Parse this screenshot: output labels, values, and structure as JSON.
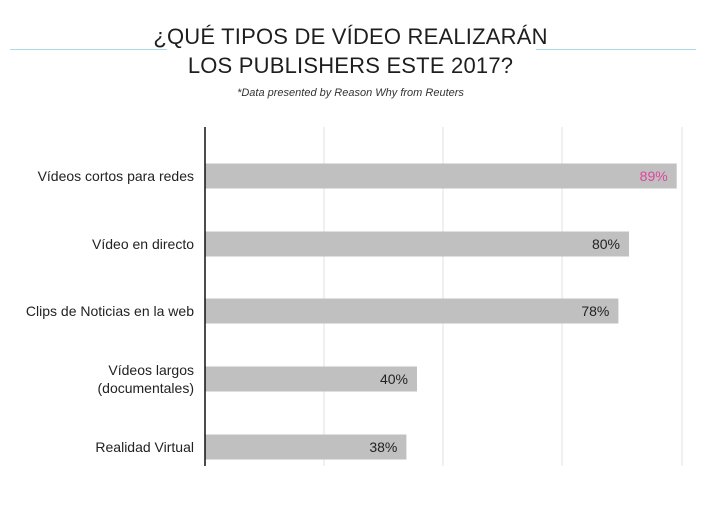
{
  "title": {
    "line1": "¿QUÉ TIPOS DE VÍDEO REALIZARÁN",
    "line2": "LOS PUBLISHERS ESTE 2017?"
  },
  "subtitle": "*Data presented by Reason Why from Reuters",
  "colors": {
    "bar": "#c0c0c0",
    "highlight_label": "#e0449a",
    "rule": "#a9dbe6",
    "grid": "#e2e2e2",
    "axis": "#111111"
  },
  "chart_data": {
    "type": "bar",
    "orientation": "horizontal",
    "categories": [
      [
        "Vídeos cortos para redes"
      ],
      [
        "Vídeo en directo"
      ],
      [
        "Clips de Noticias en la web"
      ],
      [
        "Vídeos largos",
        "(documentales)"
      ],
      [
        "Realidad Virtual"
      ]
    ],
    "values": [
      89,
      80,
      78,
      40,
      38
    ],
    "value_labels": [
      "89%",
      "80%",
      "78%",
      "40%",
      "38%"
    ],
    "highlight_index": 0,
    "xlim": [
      0,
      90
    ],
    "grid": true,
    "legend": "none"
  }
}
